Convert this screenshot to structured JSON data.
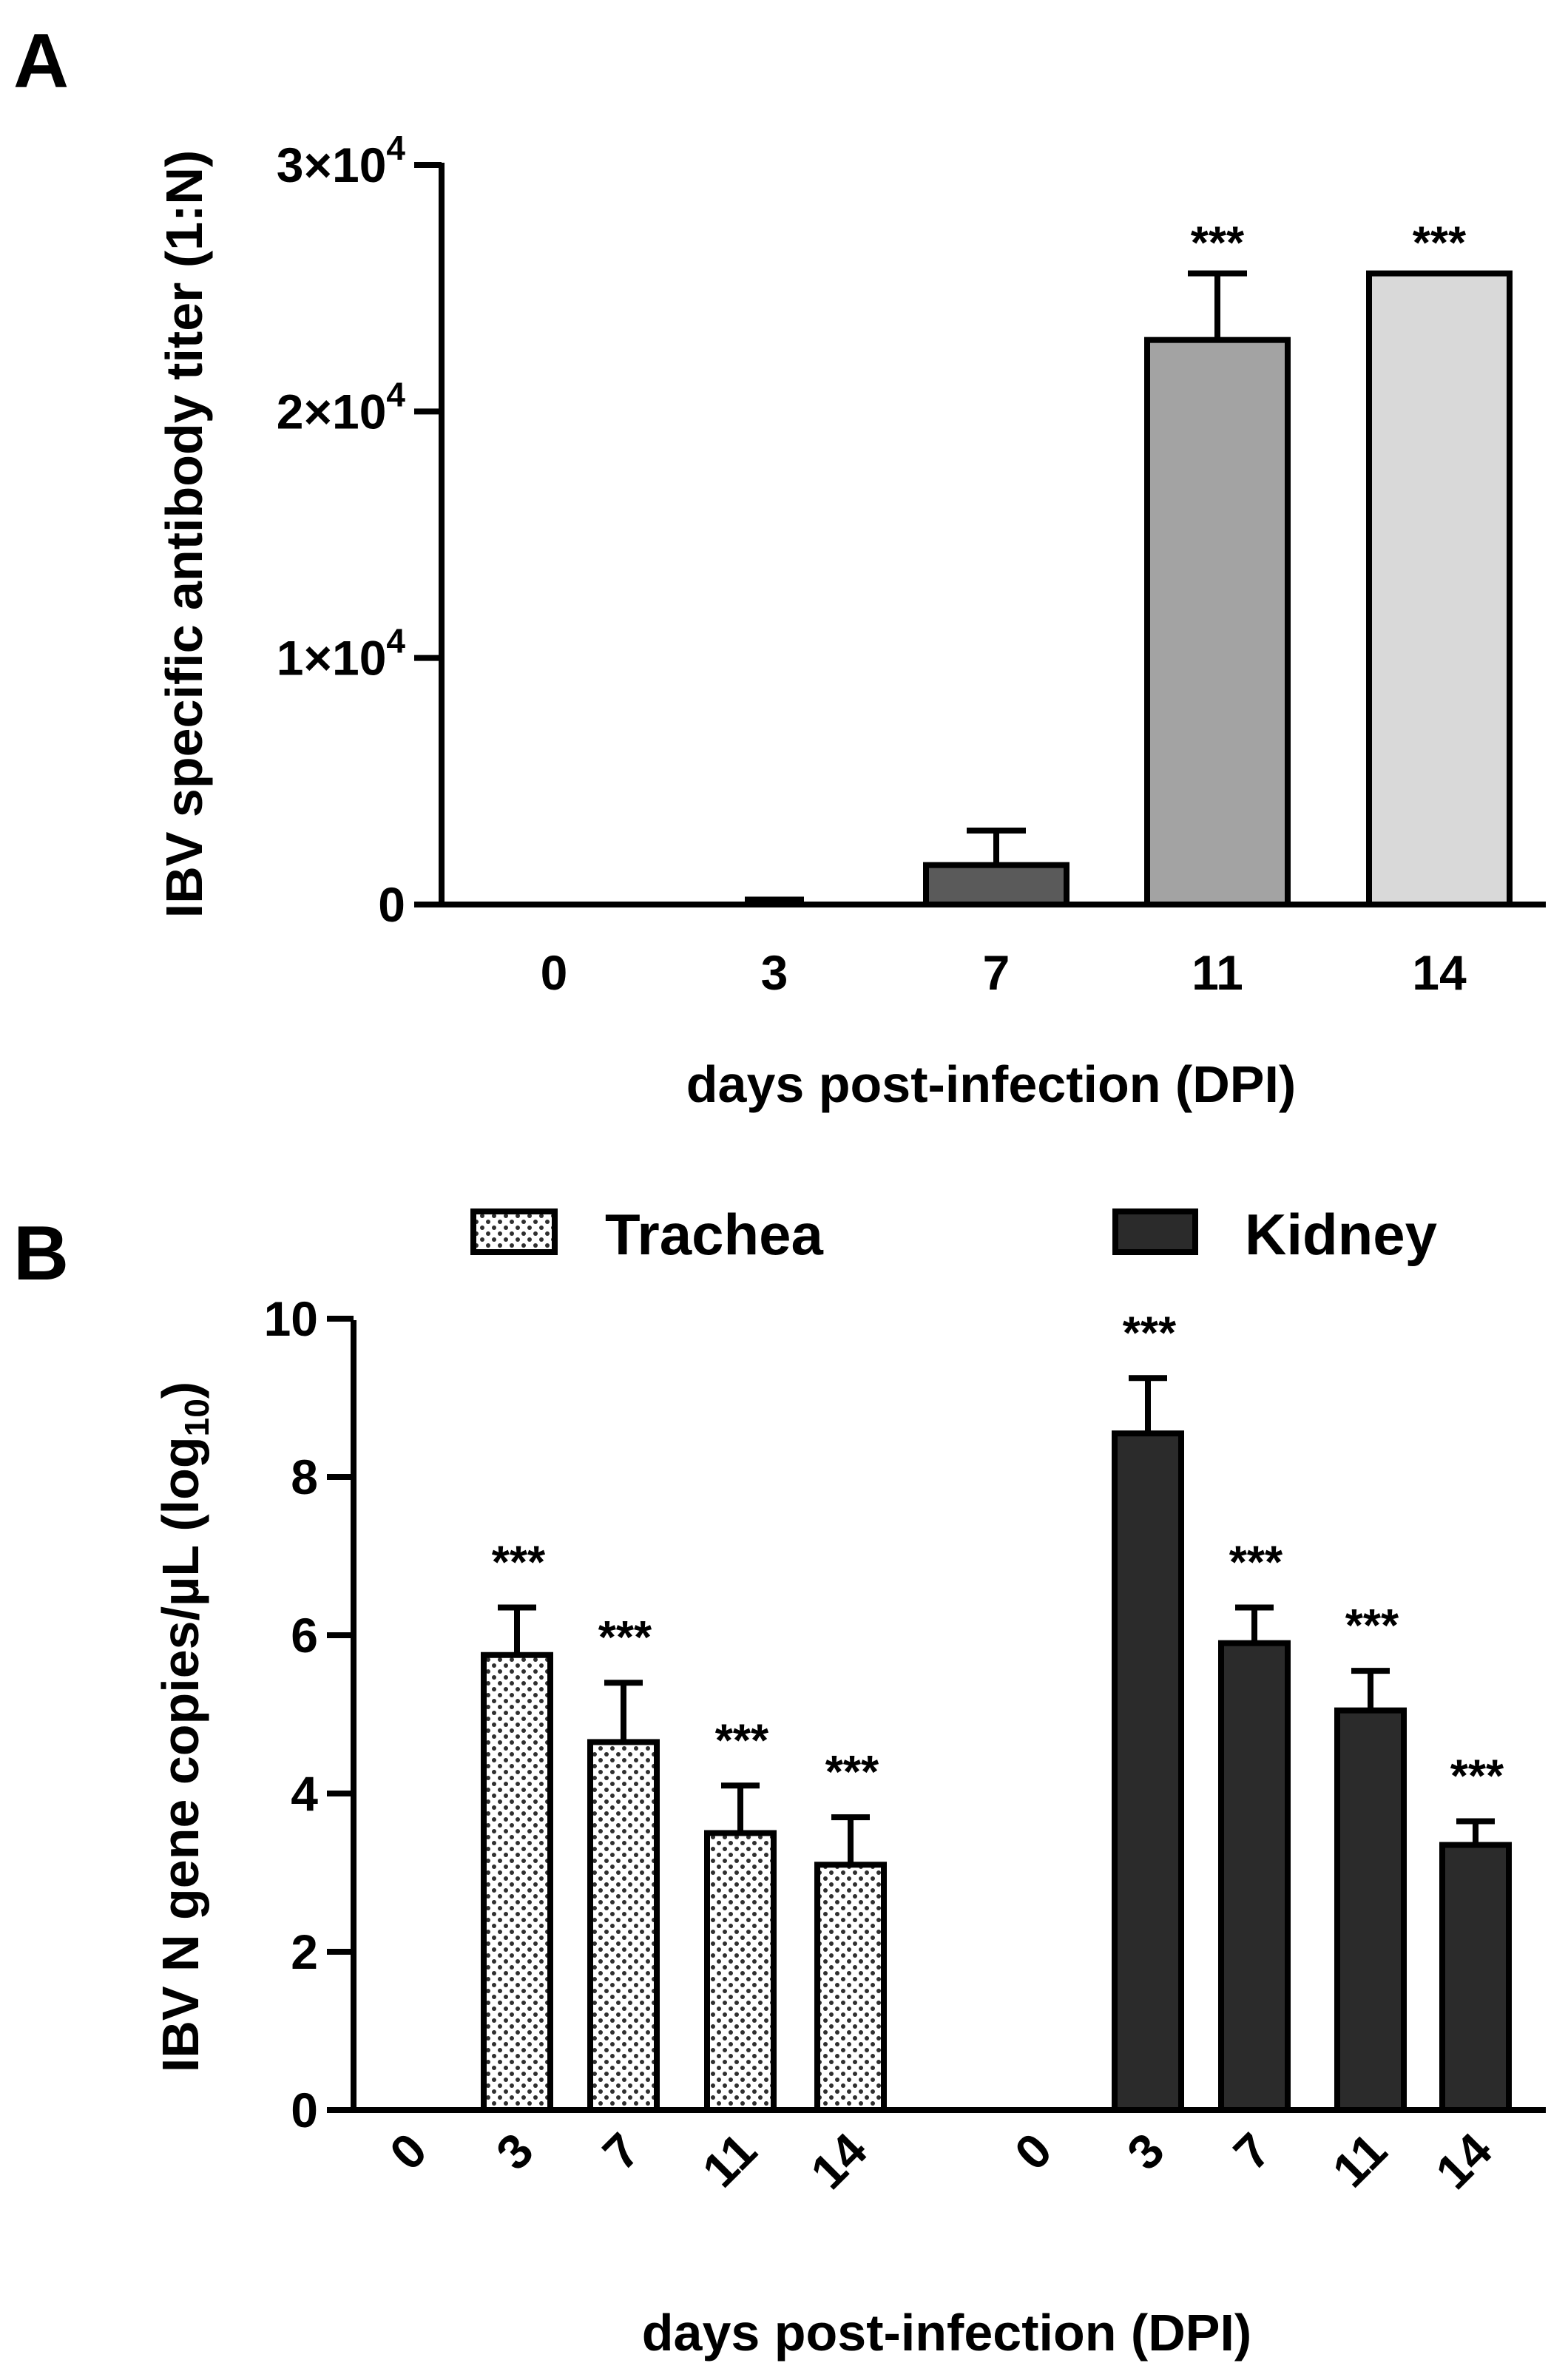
{
  "chart_data": [
    {
      "panel": "A",
      "type": "bar",
      "ylabel": "IBV specific antibody titer (1:N)",
      "xlabel": "days post-infection (DPI)",
      "ylim": [
        0,
        30000
      ],
      "yticks": [
        {
          "value": 0,
          "label": "0"
        },
        {
          "value": 10000,
          "label": "1×10",
          "exp": "4"
        },
        {
          "value": 20000,
          "label": "2×10",
          "exp": "4"
        },
        {
          "value": 30000,
          "label": "3×10",
          "exp": "4"
        }
      ],
      "categories": [
        "0",
        "3",
        "7",
        "11",
        "14"
      ],
      "values": [
        0,
        50,
        1600,
        22900,
        25600
      ],
      "errors": [
        0,
        150,
        1400,
        2700,
        0
      ],
      "fills": [
        "#ffffff",
        "#ffffff",
        "#5a5a5a",
        "#a3a3a3",
        "#d9d9d9"
      ],
      "significance": [
        "",
        "",
        "",
        "***",
        "***"
      ]
    },
    {
      "panel": "B",
      "type": "bar",
      "ylabel": "IBV N gene copies/µL (log",
      "ylabel_sub": "10",
      "ylabel_close": ")",
      "xlabel": "days post-infection (DPI)",
      "ylim": [
        0,
        10
      ],
      "yticks": [
        {
          "value": 0,
          "label": "0"
        },
        {
          "value": 2,
          "label": "2"
        },
        {
          "value": 4,
          "label": "4"
        },
        {
          "value": 6,
          "label": "6"
        },
        {
          "value": 8,
          "label": "8"
        },
        {
          "value": 10,
          "label": "10"
        }
      ],
      "categories": [
        "0",
        "3",
        "7",
        "11",
        "14"
      ],
      "series": [
        {
          "name": "Trachea",
          "pattern": "dotted",
          "color": "#ffffff",
          "values": [
            0,
            5.75,
            4.65,
            3.5,
            3.1
          ],
          "errors": [
            0,
            0.6,
            0.75,
            0.6,
            0.6
          ],
          "significance": [
            "",
            "***",
            "***",
            "***",
            "***"
          ]
        },
        {
          "name": "Kidney",
          "pattern": "solid",
          "color": "#2b2b2b",
          "values": [
            0,
            8.55,
            5.9,
            5.05,
            3.35
          ],
          "errors": [
            0,
            0.7,
            0.45,
            0.5,
            0.3
          ],
          "significance": [
            "",
            "***",
            "***",
            "***",
            "***"
          ]
        }
      ]
    }
  ]
}
